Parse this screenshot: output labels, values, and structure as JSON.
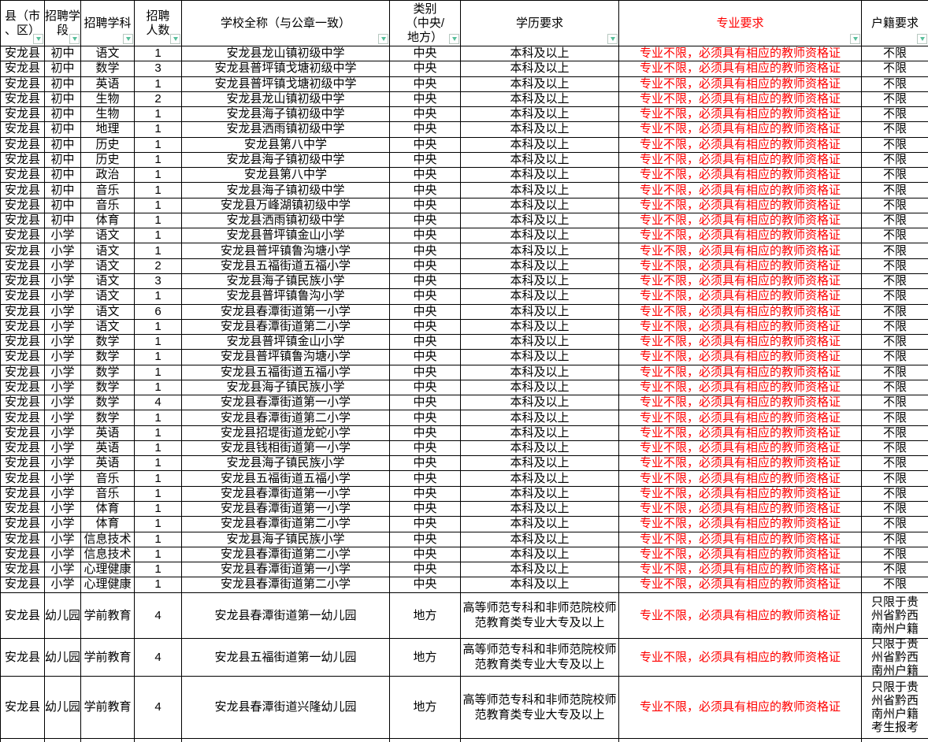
{
  "colors": {
    "accent_red": "#ff0000",
    "filter_icon_green": "#58bf9b",
    "grid": "#000000",
    "background": "#ffffff"
  },
  "table": {
    "headers": [
      {
        "id": "county",
        "label": "县（市\n、区）"
      },
      {
        "id": "stage",
        "label": "招聘学\n段"
      },
      {
        "id": "subject",
        "label": "招聘学科"
      },
      {
        "id": "count",
        "label": "招聘\n人数"
      },
      {
        "id": "school",
        "label": "学校全称（与公章一致）"
      },
      {
        "id": "category",
        "label": "类别\n（中央/\n地方）"
      },
      {
        "id": "degree",
        "label": "学历要求"
      },
      {
        "id": "major",
        "label": "专业要求"
      },
      {
        "id": "residence",
        "label": "户籍要求"
      }
    ],
    "rows": [
      {
        "cells": [
          "安龙县",
          "初中",
          "语文",
          "1",
          "安龙县龙山镇初级中学",
          "中央",
          "本科及以上",
          "专业不限，必须具有相应的教师资格证",
          "不限"
        ]
      },
      {
        "cells": [
          "安龙县",
          "初中",
          "数学",
          "3",
          "安龙县普坪镇戈塘初级中学",
          "中央",
          "本科及以上",
          "专业不限，必须具有相应的教师资格证",
          "不限"
        ]
      },
      {
        "cells": [
          "安龙县",
          "初中",
          "英语",
          "1",
          "安龙县普坪镇戈塘初级中学",
          "中央",
          "本科及以上",
          "专业不限，必须具有相应的教师资格证",
          "不限"
        ]
      },
      {
        "cells": [
          "安龙县",
          "初中",
          "生物",
          "2",
          "安龙县龙山镇初级中学",
          "中央",
          "本科及以上",
          "专业不限，必须具有相应的教师资格证",
          "不限"
        ]
      },
      {
        "cells": [
          "安龙县",
          "初中",
          "生物",
          "1",
          "安龙县海子镇初级中学",
          "中央",
          "本科及以上",
          "专业不限，必须具有相应的教师资格证",
          "不限"
        ]
      },
      {
        "cells": [
          "安龙县",
          "初中",
          "地理",
          "1",
          "安龙县洒雨镇初级中学",
          "中央",
          "本科及以上",
          "专业不限，必须具有相应的教师资格证",
          "不限"
        ]
      },
      {
        "cells": [
          "安龙县",
          "初中",
          "历史",
          "1",
          "安龙县第八中学",
          "中央",
          "本科及以上",
          "专业不限，必须具有相应的教师资格证",
          "不限"
        ]
      },
      {
        "cells": [
          "安龙县",
          "初中",
          "历史",
          "1",
          "安龙县海子镇初级中学",
          "中央",
          "本科及以上",
          "专业不限，必须具有相应的教师资格证",
          "不限"
        ]
      },
      {
        "cells": [
          "安龙县",
          "初中",
          "政治",
          "1",
          "安龙县第八中学",
          "中央",
          "本科及以上",
          "专业不限，必须具有相应的教师资格证",
          "不限"
        ]
      },
      {
        "cells": [
          "安龙县",
          "初中",
          "音乐",
          "1",
          "安龙县海子镇初级中学",
          "中央",
          "本科及以上",
          "专业不限，必须具有相应的教师资格证",
          "不限"
        ]
      },
      {
        "cells": [
          "安龙县",
          "初中",
          "音乐",
          "1",
          "安龙县万峰湖镇初级中学",
          "中央",
          "本科及以上",
          "专业不限，必须具有相应的教师资格证",
          "不限"
        ]
      },
      {
        "cells": [
          "安龙县",
          "初中",
          "体育",
          "1",
          "安龙县洒雨镇初级中学",
          "中央",
          "本科及以上",
          "专业不限，必须具有相应的教师资格证",
          "不限"
        ]
      },
      {
        "cells": [
          "安龙县",
          "小学",
          "语文",
          "1",
          "安龙县普坪镇金山小学",
          "中央",
          "本科及以上",
          "专业不限，必须具有相应的教师资格证",
          "不限"
        ]
      },
      {
        "cells": [
          "安龙县",
          "小学",
          "语文",
          "1",
          "安龙县普坪镇鲁沟塘小学",
          "中央",
          "本科及以上",
          "专业不限，必须具有相应的教师资格证",
          "不限"
        ]
      },
      {
        "cells": [
          "安龙县",
          "小学",
          "语文",
          "2",
          "安龙县五福街道五福小学",
          "中央",
          "本科及以上",
          "专业不限，必须具有相应的教师资格证",
          "不限"
        ]
      },
      {
        "cells": [
          "安龙县",
          "小学",
          "语文",
          "3",
          "安龙县海子镇民族小学",
          "中央",
          "本科及以上",
          "专业不限，必须具有相应的教师资格证",
          "不限"
        ]
      },
      {
        "cells": [
          "安龙县",
          "小学",
          "语文",
          "1",
          "安龙县普坪镇鲁沟小学",
          "中央",
          "本科及以上",
          "专业不限，必须具有相应的教师资格证",
          "不限"
        ]
      },
      {
        "cells": [
          "安龙县",
          "小学",
          "语文",
          "6",
          "安龙县春潭街道第一小学",
          "中央",
          "本科及以上",
          "专业不限，必须具有相应的教师资格证",
          "不限"
        ]
      },
      {
        "cells": [
          "安龙县",
          "小学",
          "语文",
          "1",
          "安龙县春潭街道第二小学",
          "中央",
          "本科及以上",
          "专业不限，必须具有相应的教师资格证",
          "不限"
        ]
      },
      {
        "cells": [
          "安龙县",
          "小学",
          "数学",
          "1",
          "安龙县普坪镇金山小学",
          "中央",
          "本科及以上",
          "专业不限，必须具有相应的教师资格证",
          "不限"
        ]
      },
      {
        "cells": [
          "安龙县",
          "小学",
          "数学",
          "1",
          "安龙县普坪镇鲁沟塘小学",
          "中央",
          "本科及以上",
          "专业不限，必须具有相应的教师资格证",
          "不限"
        ]
      },
      {
        "cells": [
          "安龙县",
          "小学",
          "数学",
          "1",
          "安龙县五福街道五福小学",
          "中央",
          "本科及以上",
          "专业不限，必须具有相应的教师资格证",
          "不限"
        ]
      },
      {
        "cells": [
          "安龙县",
          "小学",
          "数学",
          "1",
          "安龙县海子镇民族小学",
          "中央",
          "本科及以上",
          "专业不限，必须具有相应的教师资格证",
          "不限"
        ]
      },
      {
        "cells": [
          "安龙县",
          "小学",
          "数学",
          "4",
          "安龙县春潭街道第一小学",
          "中央",
          "本科及以上",
          "专业不限，必须具有相应的教师资格证",
          "不限"
        ]
      },
      {
        "cells": [
          "安龙县",
          "小学",
          "数学",
          "1",
          "安龙县春潭街道第二小学",
          "中央",
          "本科及以上",
          "专业不限，必须具有相应的教师资格证",
          "不限"
        ]
      },
      {
        "cells": [
          "安龙县",
          "小学",
          "英语",
          "1",
          "安龙县招堤街道龙蛇小学",
          "中央",
          "本科及以上",
          "专业不限，必须具有相应的教师资格证",
          "不限"
        ]
      },
      {
        "cells": [
          "安龙县",
          "小学",
          "英语",
          "1",
          "安龙县钱相街道第一小学",
          "中央",
          "本科及以上",
          "专业不限，必须具有相应的教师资格证",
          "不限"
        ]
      },
      {
        "cells": [
          "安龙县",
          "小学",
          "英语",
          "1",
          "安龙县海子镇民族小学",
          "中央",
          "本科及以上",
          "专业不限，必须具有相应的教师资格证",
          "不限"
        ]
      },
      {
        "cells": [
          "安龙县",
          "小学",
          "音乐",
          "1",
          "安龙县五福街道五福小学",
          "中央",
          "本科及以上",
          "专业不限，必须具有相应的教师资格证",
          "不限"
        ]
      },
      {
        "cells": [
          "安龙县",
          "小学",
          "音乐",
          "1",
          "安龙县春潭街道第一小学",
          "中央",
          "本科及以上",
          "专业不限，必须具有相应的教师资格证",
          "不限"
        ]
      },
      {
        "cells": [
          "安龙县",
          "小学",
          "体育",
          "1",
          "安龙县春潭街道第一小学",
          "中央",
          "本科及以上",
          "专业不限，必须具有相应的教师资格证",
          "不限"
        ]
      },
      {
        "cells": [
          "安龙县",
          "小学",
          "体育",
          "1",
          "安龙县春潭街道第二小学",
          "中央",
          "本科及以上",
          "专业不限，必须具有相应的教师资格证",
          "不限"
        ]
      },
      {
        "cells": [
          "安龙县",
          "小学",
          "信息技术",
          "1",
          "安龙县海子镇民族小学",
          "中央",
          "本科及以上",
          "专业不限，必须具有相应的教师资格证",
          "不限"
        ]
      },
      {
        "cells": [
          "安龙县",
          "小学",
          "信息技术",
          "1",
          "安龙县春潭街道第二小学",
          "中央",
          "本科及以上",
          "专业不限，必须具有相应的教师资格证",
          "不限"
        ]
      },
      {
        "cells": [
          "安龙县",
          "小学",
          "心理健康",
          "1",
          "安龙县春潭街道第一小学",
          "中央",
          "本科及以上",
          "专业不限，必须具有相应的教师资格证",
          "不限"
        ]
      },
      {
        "cells": [
          "安龙县",
          "小学",
          "心理健康",
          "1",
          "安龙县春潭街道第二小学",
          "中央",
          "本科及以上",
          "专业不限，必须具有相应的教师资格证",
          "不限"
        ]
      },
      {
        "cells": [
          "安龙县",
          "幼儿园",
          "学前教育",
          "4",
          "安龙县春潭街道第一幼儿园",
          "地方",
          "高等师范专科和非师范院校师范教育类专业大专及以上",
          "专业不限，必须具有相应的教师资格证",
          "只限于贵州省黔西南州户籍"
        ]
      },
      {
        "cells": [
          "安龙县",
          "幼儿园",
          "学前教育",
          "4",
          "安龙县五福街道第一幼儿园",
          "地方",
          "高等师范专科和非师范院校师范教育类专业大专及以上",
          "专业不限，必须具有相应的教师资格证",
          "只限于贵州省黔西南州户籍"
        ]
      },
      {
        "cells": [
          "安龙县",
          "幼儿园",
          "学前教育",
          "4",
          "安龙县春潭街道兴隆幼儿园",
          "地方",
          "高等师范专科和非师范院校师范教育类专业大专及以上",
          "专业不限，必须具有相应的教师资格证",
          "只限于贵州省黔西南州户籍考生报考"
        ]
      }
    ]
  }
}
